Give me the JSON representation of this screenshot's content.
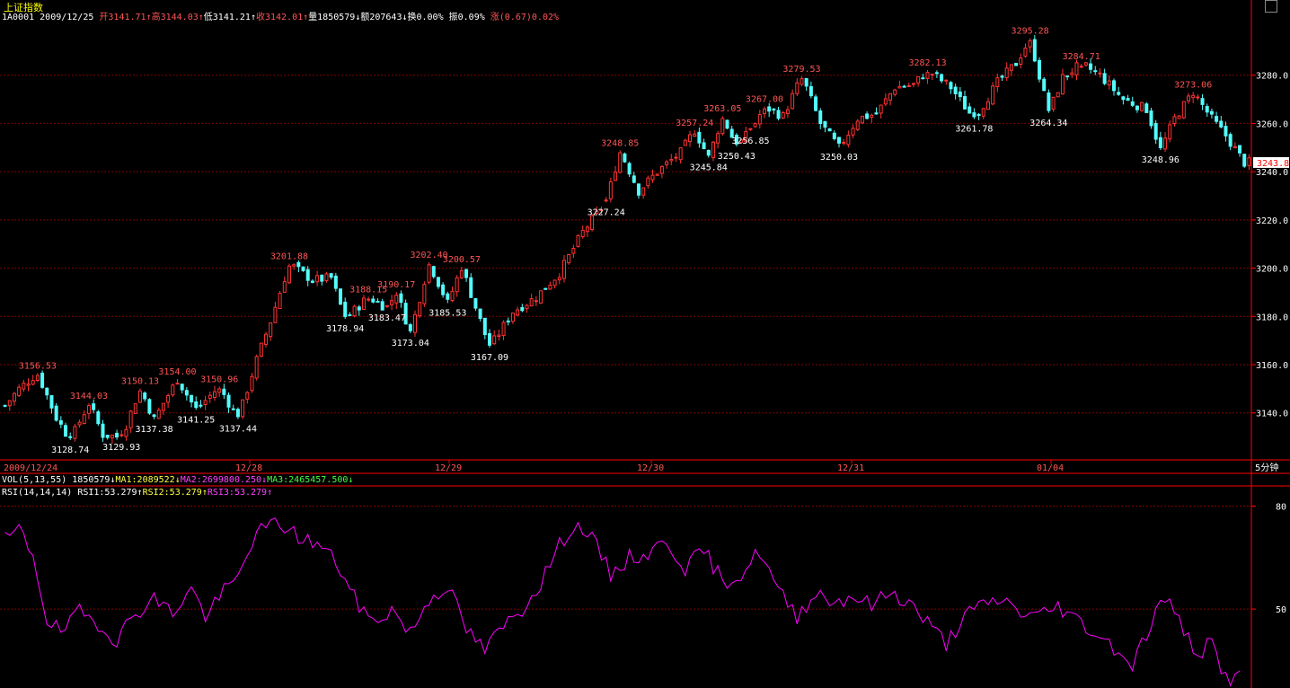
{
  "header": {
    "title": "上证指数",
    "code": "1A0001",
    "date": "2009/12/25",
    "open_label": "开",
    "open": "3141.71",
    "high_label": "高",
    "high": "3144.03",
    "low_label": "低",
    "low": "3141.21",
    "close_label": "收",
    "close": "3142.01",
    "volume_label": "量",
    "volume": "1850579",
    "amount_label": "额",
    "amount": "207643",
    "turnover_label": "换",
    "turnover": "0.00%",
    "amplitude_label": "振",
    "amplitude": "0.09%",
    "change_label": "涨",
    "change": "(0.67)0.02%"
  },
  "vol_line": {
    "label": "VOL(5,13,55)",
    "value": "1850579",
    "ma1": "MA1:2089522",
    "ma2": "MA2:2699800.250",
    "ma3": "MA3:2465457.500"
  },
  "rsi_line": {
    "label": "RSI(14,14,14)",
    "rsi1": "RSI1:53.279",
    "rsi2": "RSI2:53.279",
    "rsi3": "RSI3:53.279"
  },
  "period_label": "5分钟",
  "current_price_tag": "3243.8",
  "colors": {
    "up": "#ff3333",
    "down": "#54fcfc",
    "rsi": "#ff00ff",
    "grid": "#800000",
    "axis": "#ff0000"
  },
  "chart_data": [
    {
      "type": "candlestick",
      "x": [
        "2009/12/24",
        "12/28",
        "12/29",
        "12/30",
        "12/31",
        "01/04"
      ],
      "y_ticks": [
        "3140.0",
        "3160.0",
        "3180.0",
        "3200.0",
        "3220.0",
        "3240.0",
        "3260.0",
        "3280.0"
      ],
      "ylim": [
        3125,
        3300
      ],
      "path": [
        [
          0,
          3143
        ],
        [
          3,
          3150
        ],
        [
          7,
          3156.53
        ],
        [
          11,
          3138
        ],
        [
          14,
          3128.7
        ],
        [
          18,
          3144.03
        ],
        [
          21,
          3131
        ],
        [
          25,
          3129.93
        ],
        [
          29,
          3150.13
        ],
        [
          32,
          3137.38
        ],
        [
          37,
          3154.0
        ],
        [
          41,
          3141.25
        ],
        [
          46,
          3150.96
        ],
        [
          50,
          3137.44
        ],
        [
          54,
          3162
        ],
        [
          57,
          3178
        ],
        [
          61,
          3201.88
        ],
        [
          66,
          3195
        ],
        [
          70,
          3196
        ],
        [
          73,
          3178.94
        ],
        [
          78,
          3188.15
        ],
        [
          82,
          3183.47
        ],
        [
          84,
          3190.17
        ],
        [
          87,
          3173.04
        ],
        [
          91,
          3202.4
        ],
        [
          95,
          3185.53
        ],
        [
          98,
          3200.57
        ],
        [
          104,
          3167.09
        ],
        [
          109,
          3182
        ],
        [
          114,
          3188
        ],
        [
          119,
          3198
        ],
        [
          124,
          3215
        ],
        [
          129,
          3227.24
        ],
        [
          132,
          3248.85
        ],
        [
          136,
          3232
        ],
        [
          140,
          3240
        ],
        [
          145,
          3248
        ],
        [
          148,
          3257.24
        ],
        [
          151,
          3245.84
        ],
        [
          154,
          3263.05
        ],
        [
          157,
          3250.43
        ],
        [
          160,
          3256.85
        ],
        [
          163,
          3267.0
        ],
        [
          167,
          3263
        ],
        [
          171,
          3279.53
        ],
        [
          175,
          3260
        ],
        [
          179,
          3250.03
        ],
        [
          183,
          3262
        ],
        [
          187,
          3264
        ],
        [
          191,
          3275
        ],
        [
          195,
          3276
        ],
        [
          198,
          3282.13
        ],
        [
          203,
          3275
        ],
        [
          208,
          3261.78
        ],
        [
          213,
          3277
        ],
        [
          217,
          3285
        ],
        [
          220,
          3295.28
        ],
        [
          224,
          3264.34
        ],
        [
          227,
          3279
        ],
        [
          231,
          3284.71
        ],
        [
          235,
          3280
        ],
        [
          240,
          3270
        ],
        [
          245,
          3266
        ],
        [
          248,
          3248.96
        ],
        [
          251,
          3262
        ],
        [
          255,
          3273.06
        ],
        [
          259,
          3262
        ],
        [
          262,
          3255
        ],
        [
          266,
          3243.8
        ]
      ],
      "annotations": [
        {
          "x": 7,
          "value": "3156.53",
          "kind": "high"
        },
        {
          "x": 14,
          "value": "3128.74",
          "kind": "low"
        },
        {
          "x": 18,
          "value": "3144.03",
          "kind": "high"
        },
        {
          "x": 25,
          "value": "3129.93",
          "kind": "low"
        },
        {
          "x": 29,
          "value": "3150.13",
          "kind": "high"
        },
        {
          "x": 32,
          "value": "3137.38",
          "kind": "low"
        },
        {
          "x": 37,
          "value": "3154.00",
          "kind": "high"
        },
        {
          "x": 41,
          "value": "3141.25",
          "kind": "low"
        },
        {
          "x": 46,
          "value": "3150.96",
          "kind": "high"
        },
        {
          "x": 50,
          "value": "3137.44",
          "kind": "low"
        },
        {
          "x": 61,
          "value": "3201.88",
          "kind": "high"
        },
        {
          "x": 73,
          "value": "3178.94",
          "kind": "low"
        },
        {
          "x": 78,
          "value": "3188.15",
          "kind": "high"
        },
        {
          "x": 82,
          "value": "3183.47",
          "kind": "low"
        },
        {
          "x": 84,
          "value": "3190.17",
          "kind": "high"
        },
        {
          "x": 87,
          "value": "3173.04",
          "kind": "low"
        },
        {
          "x": 91,
          "value": "3202.40",
          "kind": "high"
        },
        {
          "x": 95,
          "value": "3185.53",
          "kind": "low"
        },
        {
          "x": 98,
          "value": "3200.57",
          "kind": "high"
        },
        {
          "x": 104,
          "value": "3167.09",
          "kind": "low"
        },
        {
          "x": 129,
          "value": "3227.24",
          "kind": "low"
        },
        {
          "x": 132,
          "value": "3248.85",
          "kind": "high"
        },
        {
          "x": 148,
          "value": "3257.24",
          "kind": "high"
        },
        {
          "x": 151,
          "value": "3245.84",
          "kind": "low"
        },
        {
          "x": 154,
          "value": "3263.05",
          "kind": "high"
        },
        {
          "x": 157,
          "value": "3250.43",
          "kind": "low"
        },
        {
          "x": 160,
          "value": "3256.85",
          "kind": "low"
        },
        {
          "x": 163,
          "value": "3267.00",
          "kind": "high"
        },
        {
          "x": 171,
          "value": "3279.53",
          "kind": "high"
        },
        {
          "x": 179,
          "value": "3250.03",
          "kind": "low"
        },
        {
          "x": 198,
          "value": "3282.13",
          "kind": "high"
        },
        {
          "x": 208,
          "value": "3261.78",
          "kind": "low"
        },
        {
          "x": 220,
          "value": "3295.28",
          "kind": "high"
        },
        {
          "x": 224,
          "value": "3264.34",
          "kind": "low"
        },
        {
          "x": 231,
          "value": "3284.71",
          "kind": "high"
        },
        {
          "x": 248,
          "value": "3248.96",
          "kind": "low"
        },
        {
          "x": 255,
          "value": "3273.06",
          "kind": "high"
        }
      ]
    },
    {
      "type": "line",
      "y_ticks": [
        "80",
        "50"
      ],
      "ylim": [
        27,
        83
      ],
      "series": [
        {
          "key": "RSI1",
          "path": [
            [
              0,
              70
            ],
            [
              3,
              73
            ],
            [
              6,
              66
            ],
            [
              9,
              47
            ],
            [
              12,
              43
            ],
            [
              16,
              49
            ],
            [
              20,
              46
            ],
            [
              24,
              41
            ],
            [
              28,
              49
            ],
            [
              32,
              53
            ],
            [
              36,
              49
            ],
            [
              40,
              56
            ],
            [
              43,
              48
            ],
            [
              47,
              55
            ],
            [
              50,
              59
            ],
            [
              53,
              70
            ],
            [
              56,
              74
            ],
            [
              59,
              75
            ],
            [
              63,
              71
            ],
            [
              67,
              69
            ],
            [
              71,
              64
            ],
            [
              75,
              53
            ],
            [
              79,
              46
            ],
            [
              83,
              50
            ],
            [
              87,
              43
            ],
            [
              91,
              53
            ],
            [
              95,
              57
            ],
            [
              99,
              44
            ],
            [
              103,
              38
            ],
            [
              107,
              45
            ],
            [
              111,
              50
            ],
            [
              115,
              58
            ],
            [
              118,
              66
            ],
            [
              121,
              73
            ],
            [
              124,
              74
            ],
            [
              127,
              68
            ],
            [
              130,
              60
            ],
            [
              134,
              65
            ],
            [
              138,
              66
            ],
            [
              142,
              70
            ],
            [
              146,
              62
            ],
            [
              150,
              67
            ],
            [
              154,
              58
            ],
            [
              158,
              60
            ],
            [
              162,
              67
            ],
            [
              166,
              55
            ],
            [
              170,
              48
            ],
            [
              174,
              55
            ],
            [
              178,
              52
            ],
            [
              182,
              54
            ],
            [
              186,
              51
            ],
            [
              190,
              55
            ],
            [
              194,
              52
            ],
            [
              198,
              46
            ],
            [
              202,
              40
            ],
            [
              206,
              48
            ],
            [
              210,
              51
            ],
            [
              214,
              53
            ],
            [
              218,
              49
            ],
            [
              222,
              48
            ],
            [
              226,
              51
            ],
            [
              230,
              47
            ],
            [
              234,
              43
            ],
            [
              238,
              39
            ],
            [
              242,
              34
            ],
            [
              246,
              46
            ],
            [
              249,
              54
            ],
            [
              252,
              46
            ],
            [
              256,
              37
            ],
            [
              259,
              40
            ],
            [
              262,
              30
            ]
          ]
        }
      ]
    }
  ]
}
